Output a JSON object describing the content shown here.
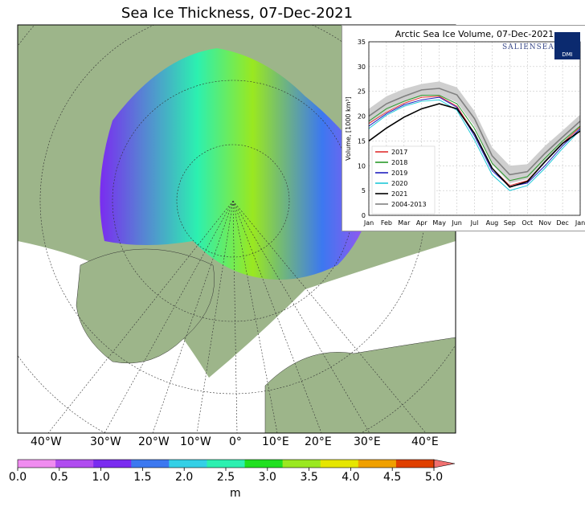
{
  "map": {
    "title": "Sea Ice Thickness, 07-Dec-2021",
    "longitude_labels": [
      "40°W",
      "30°W",
      "20°W",
      "10°W",
      "0°",
      "10°E",
      "20°E",
      "30°E",
      "40°E"
    ],
    "colorbar": {
      "unit": "m",
      "ticks": [
        "0.0",
        "0.5",
        "1.0",
        "1.5",
        "2.0",
        "2.5",
        "3.0",
        "3.5",
        "4.0",
        "4.5",
        "5.0"
      ],
      "colors": [
        "#f08cf0",
        "#b04cf0",
        "#7a2cf0",
        "#3c78f0",
        "#34d0e6",
        "#2cf0b0",
        "#20e020",
        "#9ae820",
        "#e6e600",
        "#f0a000",
        "#e04000",
        "#f07070"
      ]
    },
    "colors": {
      "land": "#9db58a",
      "water": "#ffffff",
      "grid": "#333333"
    }
  },
  "chart_data": {
    "type": "line",
    "title": "Arctic Sea Ice Volume, 07-Dec-2021",
    "ylabel": "Volume, [1000 km³]",
    "xlabel": "",
    "categories": [
      "Jan",
      "Feb",
      "Mar",
      "Apr",
      "May",
      "Jun",
      "Jul",
      "Aug",
      "Sep",
      "Oct",
      "Nov",
      "Dec",
      "Jan"
    ],
    "ylim": [
      0,
      35
    ],
    "yticks": [
      0,
      5,
      10,
      15,
      20,
      25,
      30,
      35
    ],
    "grid": true,
    "legend_position": "lower-left",
    "logo": "SALIENSEAS",
    "badge": "DMI",
    "series": [
      {
        "name": "2017",
        "color": "#e03030",
        "values": [
          18.5,
          20.8,
          22.6,
          23.8,
          24.0,
          22.0,
          16.5,
          9.5,
          6.0,
          7.0,
          10.8,
          14.5,
          17.8
        ]
      },
      {
        "name": "2018",
        "color": "#2a9a2a",
        "values": [
          19.0,
          21.5,
          23.0,
          24.2,
          24.2,
          22.5,
          17.5,
          10.5,
          7.0,
          7.8,
          11.5,
          15.0,
          18.0
        ]
      },
      {
        "name": "2019",
        "color": "#2020c0",
        "values": [
          18.0,
          20.5,
          22.3,
          23.3,
          23.8,
          21.8,
          16.0,
          9.0,
          5.8,
          6.5,
          10.0,
          14.0,
          17.5
        ]
      },
      {
        "name": "2020",
        "color": "#20c8d8",
        "values": [
          17.5,
          20.2,
          22.0,
          23.0,
          23.3,
          21.2,
          15.2,
          8.2,
          5.0,
          6.0,
          9.5,
          13.5,
          17.2
        ]
      },
      {
        "name": "2021",
        "color": "#000000",
        "values": [
          15.0,
          17.6,
          19.8,
          21.5,
          22.5,
          21.5,
          16.5,
          9.5,
          5.7,
          6.8,
          10.8,
          14.5,
          17.0
        ]
      },
      {
        "name": "2004-2013",
        "color": "#808080",
        "values": [
          20.0,
          22.5,
          24.0,
          25.3,
          25.6,
          24.3,
          19.5,
          12.0,
          8.2,
          8.8,
          12.5,
          15.8,
          19.0
        ]
      }
    ],
    "band": {
      "color": "#cfcfcf",
      "lower": [
        18.5,
        21.0,
        22.8,
        24.0,
        24.2,
        22.8,
        18.0,
        10.3,
        6.5,
        7.3,
        11.0,
        14.5,
        17.7
      ],
      "upper": [
        21.5,
        24.0,
        25.5,
        26.5,
        27.0,
        25.8,
        21.0,
        13.7,
        10.0,
        10.3,
        14.0,
        17.1,
        20.3
      ]
    }
  }
}
